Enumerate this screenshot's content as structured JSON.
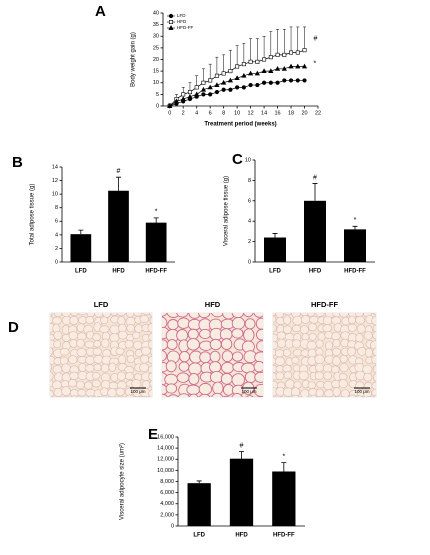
{
  "chart_data": [
    {
      "type": "line",
      "label": "A",
      "xlabel": "Treatment period (weeks)",
      "ylabel": "Body weight gain (g)",
      "x": [
        0,
        1,
        2,
        3,
        4,
        5,
        6,
        7,
        8,
        9,
        10,
        11,
        12,
        13,
        14,
        15,
        16,
        17,
        18,
        19,
        20
      ],
      "xlim": [
        -1,
        22
      ],
      "xticks": [
        0,
        2,
        4,
        6,
        8,
        10,
        12,
        14,
        16,
        18,
        20,
        22
      ],
      "ylim": [
        0,
        40
      ],
      "yticks": [
        0,
        5,
        10,
        15,
        20,
        25,
        30,
        35,
        40
      ],
      "series": [
        {
          "name": "LFD",
          "color": "#000000",
          "fill": "#000000",
          "marker": "circle",
          "values": [
            0,
            1,
            2,
            3,
            4,
            5,
            5,
            6,
            7,
            7,
            8,
            8,
            9,
            9,
            10,
            10,
            10,
            11,
            11,
            11,
            11
          ]
        },
        {
          "name": "HFD",
          "color": "#000000",
          "fill": "#ffffff",
          "marker": "square",
          "annotation": "#",
          "values": [
            0,
            3,
            5,
            6,
            8,
            10,
            11,
            13,
            14,
            15,
            17,
            18,
            19,
            19,
            20,
            21,
            22,
            22,
            23,
            23,
            24
          ],
          "errors": [
            1,
            2,
            3,
            4,
            5,
            6,
            7,
            8,
            8,
            9,
            9,
            9,
            10,
            10,
            10,
            11,
            11,
            11,
            11,
            11,
            10
          ]
        },
        {
          "name": "HFD-FF",
          "color": "#000000",
          "fill": "#000000",
          "marker": "triangle",
          "annotation": "*",
          "values": [
            0,
            2,
            3,
            4,
            5,
            7,
            8,
            9,
            10,
            11,
            12,
            13,
            14,
            14,
            15,
            15,
            16,
            16,
            17,
            17,
            17
          ]
        }
      ]
    },
    {
      "type": "bar",
      "label": "B",
      "ylabel": "Total adipose tissue (g)",
      "color": "#000000",
      "categories": [
        "LFD",
        "HFD",
        "HFD-FF"
      ],
      "values": [
        4.1,
        10.5,
        5.8
      ],
      "errors": [
        0.6,
        2.0,
        0.7
      ],
      "annotations": [
        null,
        "#",
        "*"
      ],
      "ylim": [
        0,
        14
      ],
      "yticks": [
        0,
        2,
        4,
        6,
        8,
        10,
        12,
        14
      ]
    },
    {
      "type": "bar",
      "label": "C",
      "ylabel": "Visceral adipose tissue (g)",
      "color": "#000000",
      "categories": [
        "LFD",
        "HFD",
        "HFD-FF"
      ],
      "values": [
        2.4,
        6.0,
        3.2
      ],
      "errors": [
        0.4,
        1.7,
        0.3
      ],
      "annotations": [
        null,
        "#",
        "*"
      ],
      "ylim": [
        0,
        10
      ],
      "yticks": [
        0,
        2,
        4,
        6,
        8,
        10
      ]
    },
    {
      "type": "bar",
      "label": "E",
      "ylabel": "Visceral adipocyte size (um²)",
      "color": "#000000",
      "categories": [
        "LFD",
        "HFD",
        "HFD-FF"
      ],
      "values": [
        7700,
        12100,
        9800
      ],
      "errors": [
        400,
        1300,
        1600
      ],
      "annotations": [
        null,
        "#",
        "*"
      ],
      "ylim": [
        0,
        16000
      ],
      "yticks": [
        0,
        {
          "value": 2000,
          "label": "2,000"
        },
        {
          "value": 4000,
          "label": "4,000"
        },
        {
          "value": 6000,
          "label": "6,000"
        },
        {
          "value": 8000,
          "label": "8,000"
        },
        {
          "value": 10000,
          "label": "10,000"
        },
        {
          "value": 12000,
          "label": "12,000"
        },
        {
          "value": 14000,
          "label": "14,000"
        },
        {
          "value": 16000,
          "label": "16,000"
        }
      ]
    }
  ],
  "histology": {
    "label": "D",
    "panels": [
      {
        "title": "LFD",
        "scale": "100 μm"
      },
      {
        "title": "HFD",
        "scale": "100 μm"
      },
      {
        "title": "HFD-FF",
        "scale": "100 μm"
      }
    ]
  }
}
